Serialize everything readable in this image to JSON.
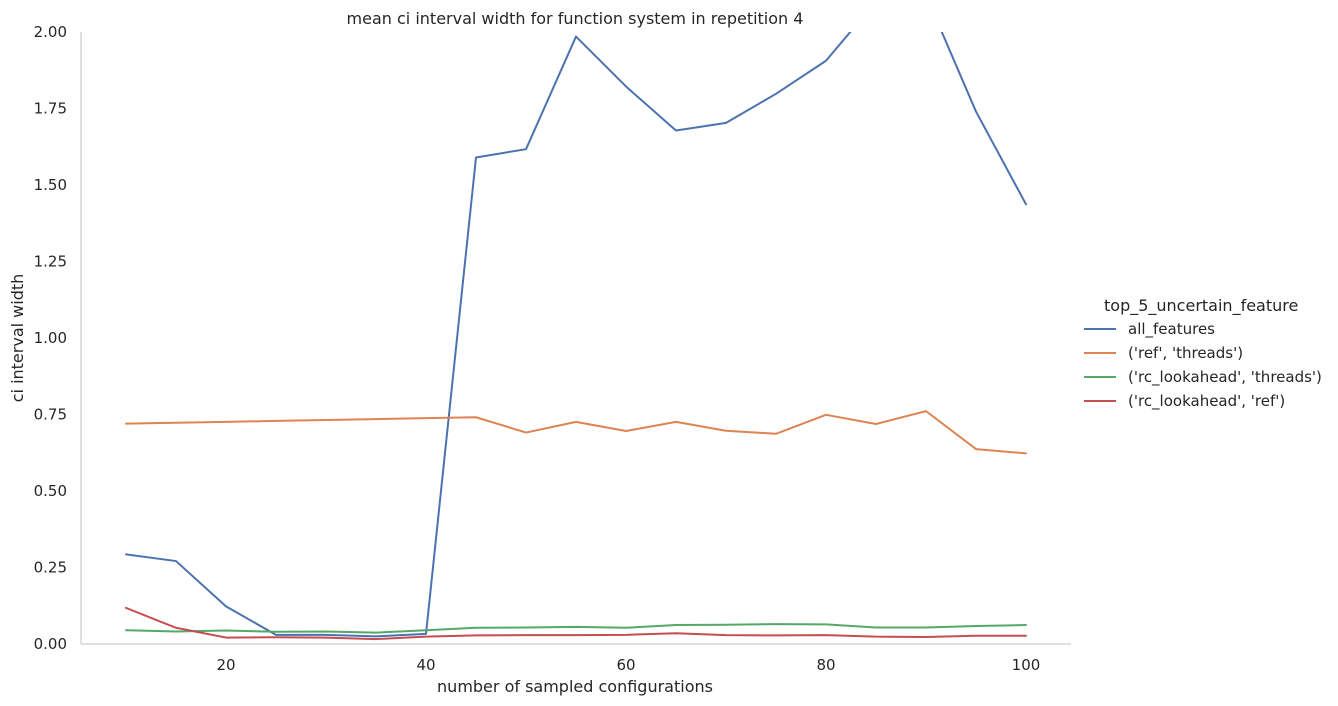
{
  "chart_data": {
    "type": "line",
    "title": "mean ci interval width for function system in repetition 4",
    "xlabel": "number of sampled configurations",
    "ylabel": "ci interval width",
    "xlim": [
      5.5,
      104.5
    ],
    "ylim": [
      0,
      2.0
    ],
    "xticks": [
      20,
      40,
      60,
      80,
      100
    ],
    "xtick_labels": [
      "20",
      "40",
      "60",
      "80",
      "100"
    ],
    "yticks": [
      0.0,
      0.25,
      0.5,
      0.75,
      1.0,
      1.25,
      1.5,
      1.75,
      2.0
    ],
    "ytick_labels": [
      "0.00",
      "0.25",
      "0.50",
      "0.75",
      "1.00",
      "1.25",
      "1.50",
      "1.75",
      "2.00"
    ],
    "grid": false,
    "legend_title": "top_5_uncertain_feature",
    "legend_position": "right",
    "x": [
      10,
      15,
      20,
      25,
      30,
      35,
      40,
      45,
      50,
      55,
      60,
      65,
      70,
      75,
      80,
      85,
      90,
      95,
      100
    ],
    "series": [
      {
        "name": "all_features",
        "color": "#4c72b0",
        "values": [
          0.293,
          0.271,
          0.123,
          0.03,
          0.03,
          0.025,
          0.033,
          1.59,
          1.617,
          1.985,
          1.822,
          1.678,
          1.703,
          1.798,
          1.906,
          2.1,
          2.12,
          1.74,
          1.437
        ]
      },
      {
        "name": "('ref', 'threads')",
        "color": "#dd8452",
        "values": [
          0.72,
          0.723,
          0.726,
          0.729,
          0.732,
          0.735,
          0.738,
          0.741,
          0.691,
          0.726,
          0.696,
          0.726,
          0.697,
          0.687,
          0.749,
          0.719,
          0.761,
          0.637,
          0.623
        ]
      },
      {
        "name": "('rc_lookahead', 'threads')",
        "color": "#55a868",
        "values": [
          0.045,
          0.041,
          0.044,
          0.04,
          0.041,
          0.037,
          0.045,
          0.053,
          0.054,
          0.056,
          0.053,
          0.062,
          0.063,
          0.065,
          0.064,
          0.054,
          0.054,
          0.059,
          0.062
        ]
      },
      {
        "name": "('rc_lookahead', 'ref')",
        "color": "#c44e52",
        "values": [
          0.118,
          0.053,
          0.021,
          0.022,
          0.021,
          0.016,
          0.024,
          0.028,
          0.029,
          0.029,
          0.03,
          0.035,
          0.029,
          0.028,
          0.029,
          0.024,
          0.023,
          0.027,
          0.027
        ]
      }
    ]
  }
}
